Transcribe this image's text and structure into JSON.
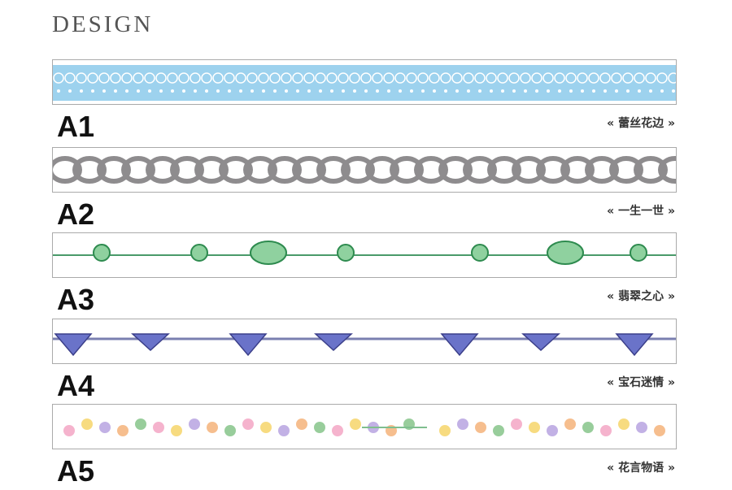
{
  "header": {
    "title": "DESIGN"
  },
  "items": [
    {
      "code": "A1",
      "name": "« 蕾丝花边 »"
    },
    {
      "code": "A2",
      "name": "« 一生一世 »"
    },
    {
      "code": "A3",
      "name": "« 翡翠之心 »"
    },
    {
      "code": "A4",
      "name": "« 宝石迷情 »"
    },
    {
      "code": "A5",
      "name": "« 花言物语 »"
    }
  ]
}
